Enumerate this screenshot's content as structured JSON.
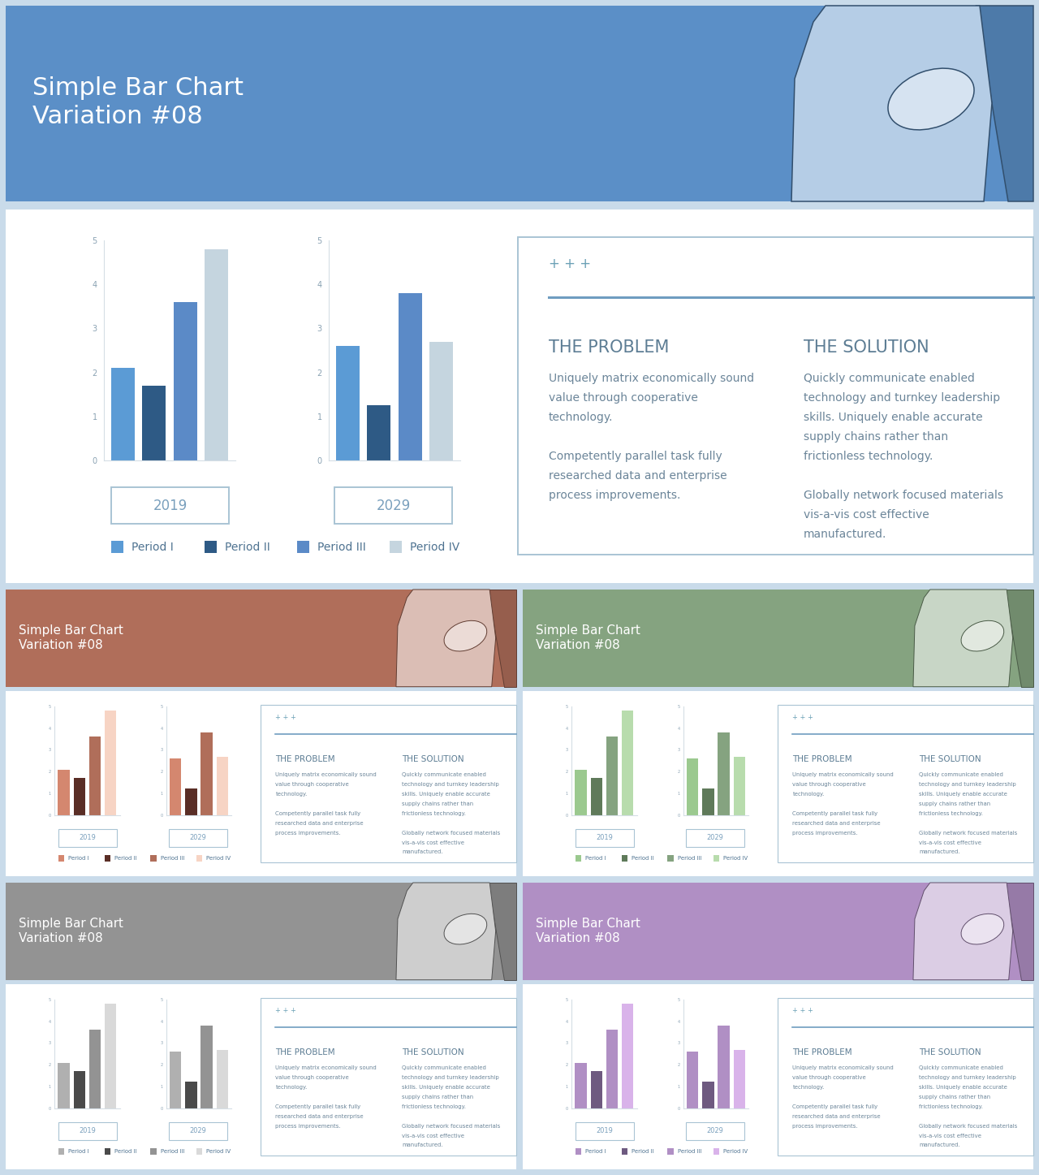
{
  "header": {
    "title": "Simple Bar Chart\nVariation #08"
  },
  "chart_data": [
    {
      "type": "bar",
      "title": "2019",
      "categories": [
        "Period I",
        "Period II",
        "Period III",
        "Period IV"
      ],
      "values": [
        2.1,
        1.7,
        3.6,
        4.8
      ],
      "ylim": [
        0,
        5
      ],
      "yticks": [
        0,
        1,
        2,
        3,
        4,
        5
      ],
      "tick_labels": "y"
    },
    {
      "type": "bar",
      "title": "2029",
      "categories": [
        "Period I",
        "Period II",
        "Period III",
        "Period IV"
      ],
      "values": [
        2.6,
        1.25,
        3.8,
        2.7
      ],
      "ylim": [
        0,
        5
      ],
      "yticks": [
        0,
        1,
        2,
        3,
        4,
        5
      ],
      "tick_labels": "y"
    }
  ],
  "text_panel": {
    "marks": "+ + +",
    "columns": [
      {
        "heading": "THE PROBLEM",
        "paragraphs": [
          "Uniquely matrix economically sound\nvalue through cooperative\ntechnology.",
          "Competently parallel task fully\nresearched data and enterprise\nprocess improvements."
        ]
      },
      {
        "heading": "THE SOLUTION",
        "paragraphs": [
          "Quickly communicate enabled\ntechnology and turnkey leadership\nskills. Uniquely enable accurate\nsupply chains rather than\nfrictionless technology.",
          "Globally network focused materials\nvis-a-vis cost effective\nmanufactured."
        ]
      }
    ]
  },
  "variations": [
    {
      "header_color": "#5b8fc7",
      "colors": [
        "#5b9bd5",
        "#2e5a85",
        "#5b8ac7",
        "#c5d5df"
      ]
    },
    {
      "header_color": "#b06e5a",
      "colors": [
        "#d4876f",
        "#5a2e26",
        "#b06e5a",
        "#f7d4c4"
      ]
    },
    {
      "header_color": "#85a380",
      "colors": [
        "#9bc98f",
        "#5f7a5a",
        "#85a380",
        "#b8dcad"
      ]
    },
    {
      "header_color": "#939393",
      "colors": [
        "#b0b0b0",
        "#4a4a4a",
        "#939393",
        "#d9d9d9"
      ]
    },
    {
      "header_color": "#b08fc4",
      "colors": [
        "#b08fc4",
        "#6e5a80",
        "#b08fc4",
        "#d9b3ea"
      ]
    }
  ]
}
